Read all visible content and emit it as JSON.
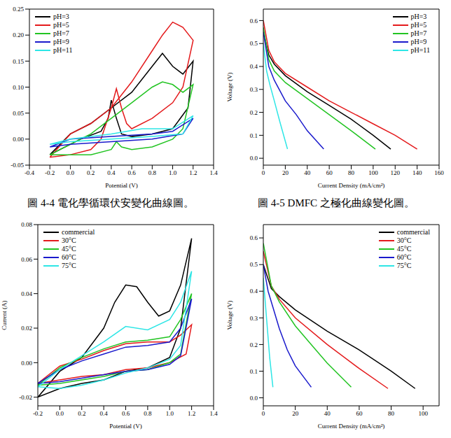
{
  "chart_data": [
    {
      "type": "line",
      "xlabel": "Potential (V)",
      "xlim": [
        -0.4,
        1.4
      ],
      "ylim": [
        -0.05,
        0.25
      ],
      "xticks": [
        -0.4,
        -0.2,
        {
          "value": 0,
          "label": "0.0"
        },
        0.2,
        0.4,
        0.6,
        0.8,
        {
          "value": 1,
          "label": "1.0"
        },
        1.2,
        1.4
      ],
      "yticks": [
        -0.05,
        {
          "value": 0,
          "label": "0.00"
        },
        0.05,
        {
          "value": 0.1,
          "label": "0.10"
        },
        0.15,
        {
          "value": 0.2,
          "label": "0.20"
        },
        0.25
      ],
      "grid": false,
      "legend": "top-left",
      "series": [
        {
          "name": "pH=3",
          "color": "#000000",
          "x": [
            -0.2,
            0,
            0.2,
            0.4,
            0.6,
            0.8,
            0.9,
            1.0,
            1.1,
            1.2,
            1.15,
            1.0,
            0.8,
            0.6,
            0.5,
            0.45,
            0.4,
            0.37,
            0.3,
            0.1,
            -0.1,
            -0.2
          ],
          "values": [
            -0.03,
            0.01,
            0.03,
            0.06,
            0.09,
            0.14,
            0.165,
            0.14,
            0.125,
            0.15,
            0.06,
            0.02,
            0.01,
            0.005,
            0.01,
            0.04,
            0.075,
            0.04,
            0.015,
            0,
            -0.02,
            -0.03
          ]
        },
        {
          "name": "pH=5",
          "color": "#e41a1c",
          "x": [
            -0.2,
            0,
            0.2,
            0.4,
            0.6,
            0.8,
            0.9,
            1.0,
            1.1,
            1.2,
            1.1,
            1.0,
            0.8,
            0.6,
            0.55,
            0.5,
            0.45,
            0.4,
            0.3,
            0.2,
            0,
            -0.2
          ],
          "values": [
            -0.035,
            0.01,
            0.03,
            0.06,
            0.11,
            0.17,
            0.2,
            0.225,
            0.215,
            0.19,
            0.1,
            0.07,
            0.04,
            0.02,
            0.03,
            0.06,
            0.097,
            0.06,
            0,
            -0.02,
            -0.03,
            -0.035
          ]
        },
        {
          "name": "pH=7",
          "color": "#22c422",
          "x": [
            -0.2,
            0,
            0.2,
            0.4,
            0.6,
            0.8,
            0.9,
            1.0,
            1.1,
            1.2,
            1.1,
            1.0,
            0.8,
            0.6,
            0.5,
            0.45,
            0.4,
            0.2,
            0,
            -0.2
          ],
          "values": [
            -0.03,
            -0.01,
            0.01,
            0.04,
            0.07,
            0.1,
            0.11,
            0.105,
            0.09,
            0.105,
            0.02,
            0,
            -0.015,
            -0.02,
            -0.015,
            -0.005,
            -0.02,
            -0.03,
            -0.03,
            -0.03
          ]
        },
        {
          "name": "pH=9",
          "color": "#1a1acc",
          "x": [
            -0.2,
            0,
            0.4,
            0.8,
            1.0,
            1.2,
            1.1,
            0.8,
            0.4,
            0,
            -0.2
          ],
          "values": [
            -0.015,
            0,
            0.005,
            0.01,
            0.015,
            0.04,
            0.01,
            0,
            -0.005,
            -0.01,
            -0.015
          ]
        },
        {
          "name": "pH=11",
          "color": "#2ee6e6",
          "x": [
            -0.2,
            0,
            0.4,
            0.7,
            1.0,
            1.2,
            1.1,
            0.8,
            0.4,
            0,
            -0.2
          ],
          "values": [
            -0.01,
            0,
            0.01,
            0.02,
            0.02,
            0.045,
            0.01,
            0.005,
            0,
            -0.005,
            -0.01
          ]
        }
      ]
    },
    {
      "type": "line",
      "xlabel": "Current Density (mA/cm²)",
      "ylabel": "Voltage (V)",
      "xlim": [
        0,
        160
      ],
      "ylim": [
        -0.03,
        0.65
      ],
      "xticks": [
        0,
        20,
        40,
        60,
        80,
        100,
        120,
        140,
        160
      ],
      "yticks": [
        {
          "value": 0,
          "label": "0.0"
        },
        0.1,
        0.2,
        0.3,
        0.4,
        0.5,
        0.6
      ],
      "grid": false,
      "legend": "top-right",
      "series": [
        {
          "name": "pH=3",
          "color": "#000000",
          "x": [
            0,
            5,
            10,
            20,
            40,
            60,
            80,
            100,
            116
          ],
          "values": [
            0.55,
            0.45,
            0.41,
            0.36,
            0.29,
            0.23,
            0.17,
            0.1,
            0.04
          ]
        },
        {
          "name": "pH=5",
          "color": "#e41a1c",
          "x": [
            0,
            5,
            10,
            20,
            40,
            60,
            80,
            100,
            120,
            140
          ],
          "values": [
            0.6,
            0.47,
            0.42,
            0.37,
            0.31,
            0.25,
            0.2,
            0.15,
            0.1,
            0.04
          ]
        },
        {
          "name": "pH=7",
          "color": "#22c422",
          "x": [
            0,
            5,
            10,
            20,
            40,
            60,
            80,
            102
          ],
          "values": [
            0.57,
            0.43,
            0.38,
            0.33,
            0.26,
            0.19,
            0.12,
            0.04
          ]
        },
        {
          "name": "pH=9",
          "color": "#1a1acc",
          "x": [
            0,
            5,
            10,
            20,
            30,
            40,
            55
          ],
          "values": [
            0.55,
            0.4,
            0.34,
            0.25,
            0.19,
            0.12,
            0.04
          ]
        },
        {
          "name": "pH=11",
          "color": "#2ee6e6",
          "x": [
            0,
            3,
            6,
            10,
            15,
            22
          ],
          "values": [
            0.5,
            0.38,
            0.32,
            0.25,
            0.16,
            0.04
          ]
        }
      ]
    },
    {
      "type": "line",
      "xlabel": "Potential (V)",
      "ylabel": "Current (A)",
      "xlim": [
        -0.2,
        1.4
      ],
      "ylim": [
        -0.025,
        0.08
      ],
      "xticks": [
        -0.2,
        {
          "value": 0,
          "label": "0.0"
        },
        0.2,
        0.4,
        0.6,
        0.8,
        {
          "value": 1,
          "label": "1.0"
        },
        1.2,
        1.4
      ],
      "yticks": [
        -0.02,
        {
          "value": 0,
          "label": "0.00"
        },
        0.02,
        0.04,
        0.06,
        0.08
      ],
      "grid": false,
      "legend": "top-left",
      "series": [
        {
          "name": "commercial",
          "color": "#000000",
          "x": [
            -0.2,
            0,
            0.2,
            0.4,
            0.5,
            0.6,
            0.7,
            0.8,
            0.9,
            1.0,
            1.1,
            1.2,
            1.1,
            1.0,
            0.8,
            0.6,
            0.4,
            0.2,
            0,
            -0.2
          ],
          "values": [
            -0.02,
            -0.005,
            0.003,
            0.02,
            0.035,
            0.045,
            0.044,
            0.035,
            0.027,
            0.03,
            0.045,
            0.072,
            0.02,
            0.003,
            -0.003,
            -0.005,
            -0.01,
            -0.012,
            -0.015,
            -0.02
          ]
        },
        {
          "name": "30°C",
          "color": "#e41a1c",
          "x": [
            -0.2,
            0,
            0.2,
            0.4,
            0.6,
            0.8,
            1.0,
            1.1,
            1.2,
            1.15,
            1.0,
            0.8,
            0.6,
            0.4,
            0.2,
            0,
            -0.2
          ],
          "values": [
            -0.012,
            -0.002,
            0.002,
            0.007,
            0.011,
            0.012,
            0.012,
            0.016,
            0.022,
            0.005,
            0,
            -0.003,
            -0.004,
            -0.007,
            -0.008,
            -0.01,
            -0.012
          ]
        },
        {
          "name": "45°C",
          "color": "#22c422",
          "x": [
            -0.2,
            0,
            0.2,
            0.4,
            0.6,
            0.8,
            1.0,
            1.1,
            1.2,
            1.1,
            1.0,
            0.8,
            0.6,
            0.4,
            0.2,
            0,
            -0.2
          ],
          "values": [
            -0.013,
            -0.003,
            0.003,
            0.008,
            0.012,
            0.013,
            0.015,
            0.025,
            0.04,
            0.005,
            0,
            -0.004,
            -0.005,
            -0.008,
            -0.01,
            -0.012,
            -0.013
          ]
        },
        {
          "name": "60°C",
          "color": "#1a1acc",
          "x": [
            -0.2,
            0,
            0.2,
            0.4,
            0.6,
            0.8,
            1.0,
            1.1,
            1.2,
            1.1,
            1.0,
            0.8,
            0.6,
            0.4,
            0.2,
            0,
            -0.2
          ],
          "values": [
            -0.012,
            -0.004,
            0.001,
            0.005,
            0.009,
            0.01,
            0.012,
            0.02,
            0.037,
            0.004,
            -0.001,
            -0.004,
            -0.005,
            -0.007,
            -0.009,
            -0.011,
            -0.012
          ]
        },
        {
          "name": "75°C",
          "color": "#2ee6e6",
          "x": [
            -0.2,
            0,
            0.2,
            0.4,
            0.6,
            0.8,
            1.0,
            1.1,
            1.2,
            1.1,
            1.0,
            0.8,
            0.6,
            0.4,
            0.2,
            0,
            -0.2
          ],
          "values": [
            -0.014,
            -0.004,
            0.004,
            0.012,
            0.021,
            0.019,
            0.025,
            0.035,
            0.053,
            0.01,
            0.002,
            -0.003,
            -0.006,
            -0.01,
            -0.013,
            -0.015,
            -0.014
          ]
        }
      ]
    },
    {
      "type": "line",
      "xlabel": "Current Density (mA/cm²)",
      "ylabel": "Voltage (V)",
      "xlim": [
        0,
        110
      ],
      "ylim": [
        -0.03,
        0.65
      ],
      "xticks": [
        0,
        20,
        40,
        60,
        80,
        100
      ],
      "yticks": [
        {
          "value": 0,
          "label": "0.0"
        },
        0.1,
        0.2,
        0.3,
        0.4,
        0.5,
        0.6
      ],
      "grid": false,
      "legend": "top-right",
      "series": [
        {
          "name": "commercial",
          "color": "#000000",
          "x": [
            0,
            5,
            10,
            20,
            40,
            60,
            80,
            95
          ],
          "values": [
            0.5,
            0.41,
            0.38,
            0.33,
            0.25,
            0.18,
            0.1,
            0.035
          ]
        },
        {
          "name": "30°C",
          "color": "#e41a1c",
          "x": [
            0,
            5,
            10,
            20,
            40,
            60,
            78
          ],
          "values": [
            0.55,
            0.42,
            0.37,
            0.3,
            0.2,
            0.11,
            0.035
          ]
        },
        {
          "name": "45°C",
          "color": "#22c422",
          "x": [
            0,
            5,
            10,
            20,
            30,
            40,
            55
          ],
          "values": [
            0.58,
            0.42,
            0.36,
            0.27,
            0.2,
            0.13,
            0.04
          ]
        },
        {
          "name": "60°C",
          "color": "#1a1acc",
          "x": [
            0,
            3,
            6,
            10,
            15,
            20,
            30
          ],
          "values": [
            0.5,
            0.4,
            0.34,
            0.26,
            0.18,
            0.12,
            0.04
          ]
        },
        {
          "name": "75°C",
          "color": "#2ee6e6",
          "x": [
            0,
            2,
            4,
            6
          ],
          "values": [
            0.45,
            0.3,
            0.15,
            0.04
          ]
        }
      ]
    }
  ],
  "captions": [
    "圖 4-4 電化學循環伏安變化曲線圖。",
    "圖 4-5 DMFC 之極化曲線變化圖。"
  ]
}
